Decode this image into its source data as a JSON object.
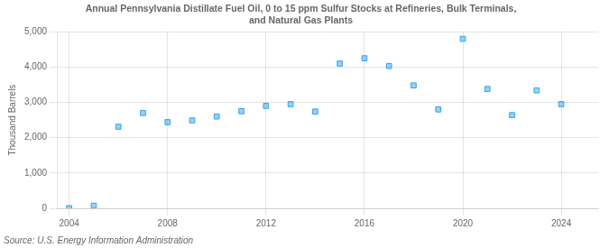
{
  "chart_data": {
    "type": "scatter",
    "title": "Annual Pennsylvania Distillate Fuel Oil, 0 to 15 ppm Sulfur Stocks at Refineries, Bulk Terminals,\nand Natural Gas Plants",
    "ylabel": "Thousand Barrels",
    "source": "Source: U.S. Energy Information Administration",
    "x": [
      2004,
      2005,
      2006,
      2007,
      2008,
      2009,
      2010,
      2011,
      2012,
      2013,
      2014,
      2015,
      2016,
      2017,
      2018,
      2019,
      2020,
      2021,
      2022,
      2023,
      2024
    ],
    "values": [
      5,
      75,
      2310,
      2700,
      2440,
      2490,
      2600,
      2750,
      2900,
      2950,
      2740,
      4100,
      4250,
      4030,
      3480,
      2800,
      4800,
      3380,
      2640,
      3340,
      2950
    ],
    "xlim": [
      2003.5,
      2025.5
    ],
    "xticks": [
      2004,
      2008,
      2012,
      2016,
      2020,
      2024
    ],
    "ylim": [
      0,
      5000
    ],
    "yticks": [
      0,
      {
        "value": 1000,
        "label": "1,000"
      },
      {
        "value": 2000,
        "label": "2,000"
      },
      {
        "value": 3000,
        "label": "3,000"
      },
      {
        "value": 4000,
        "label": "4,000"
      },
      {
        "value": 5000,
        "label": "5,000"
      }
    ],
    "grid": true,
    "marker": "square"
  }
}
